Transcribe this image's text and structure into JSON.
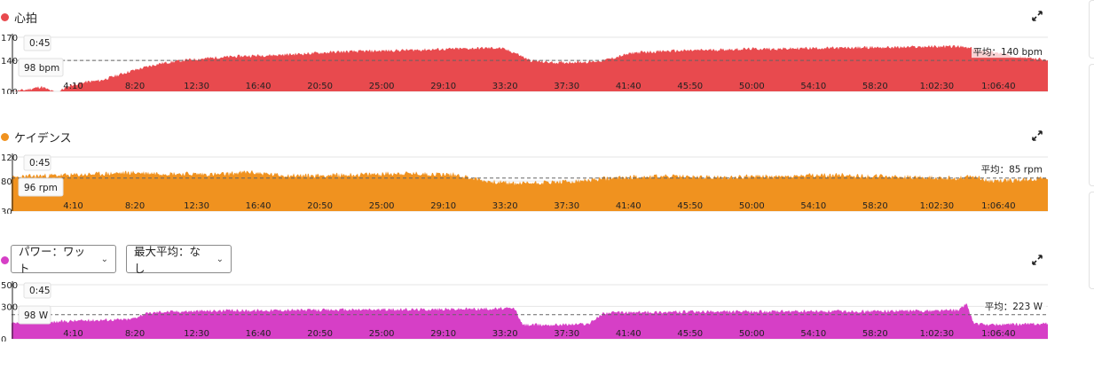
{
  "colors": {
    "hr": "#e84a4e",
    "cadence": "#f0921f",
    "power": "#d63fc6"
  },
  "x_ticks": [
    "4:10",
    "8:20",
    "12:30",
    "16:40",
    "20:50",
    "25:00",
    "29:10",
    "33:20",
    "37:30",
    "41:40",
    "45:50",
    "50:00",
    "54:10",
    "58:20",
    "1:02:30",
    "1:06:40"
  ],
  "icons": {
    "expand": "expand-icon",
    "chevron": "chevron-down-icon"
  },
  "hr": {
    "title": "心拍",
    "avg_label": "平均：140 bpm",
    "tooltip_time": "0:45",
    "tooltip_value": "98 bpm"
  },
  "cadence": {
    "title": "ケイデンス",
    "avg_label": "平均：85 rpm",
    "tooltip_time": "0:45",
    "tooltip_value": "96 rpm"
  },
  "power": {
    "metric_select": "パワー：ワット",
    "maxavg_select": "最大平均：なし",
    "avg_label": "平均：223 W",
    "tooltip_time": "0:45",
    "tooltip_value": "98 W"
  },
  "chart_data": [
    {
      "type": "area",
      "title": "心拍",
      "unit": "bpm",
      "ylim": [
        100,
        170
      ],
      "y_ticks": [
        100,
        140,
        170
      ],
      "average": 140,
      "x_minutes": [
        0,
        1,
        2,
        3,
        4,
        5,
        6,
        8,
        10,
        12,
        14,
        16,
        18,
        20,
        22,
        24,
        26,
        28,
        30,
        32,
        33,
        34,
        35,
        36,
        37,
        38,
        39,
        40,
        41,
        42,
        44,
        46,
        48,
        50,
        52,
        54,
        56,
        58,
        60,
        62,
        64,
        66,
        68,
        69,
        70
      ],
      "values": [
        100,
        102,
        106,
        98,
        108,
        112,
        114,
        126,
        136,
        141,
        144,
        146,
        147,
        149,
        151,
        152,
        153,
        154,
        155,
        156,
        156,
        150,
        140,
        138,
        137,
        138,
        138,
        140,
        145,
        150,
        152,
        153,
        154,
        155,
        155,
        156,
        156,
        157,
        157,
        158,
        158,
        152,
        145,
        143,
        140
      ]
    },
    {
      "type": "area",
      "title": "ケイデンス",
      "unit": "rpm",
      "ylim": [
        30,
        120
      ],
      "y_ticks": [
        30,
        80,
        120
      ],
      "average": 85,
      "x_minutes": [
        0,
        2,
        4,
        6,
        8,
        10,
        12,
        14,
        16,
        18,
        20,
        22,
        24,
        26,
        28,
        30,
        32,
        34,
        36,
        38,
        40,
        42,
        44,
        46,
        48,
        50,
        52,
        54,
        56,
        58,
        60,
        62,
        64,
        65,
        66,
        68,
        70
      ],
      "values": [
        86,
        89,
        90,
        92,
        94,
        93,
        92,
        91,
        95,
        90,
        89,
        90,
        91,
        93,
        92,
        91,
        80,
        76,
        78,
        79,
        84,
        87,
        88,
        87,
        86,
        88,
        87,
        89,
        90,
        88,
        87,
        86,
        85,
        89,
        80,
        82,
        85
      ]
    },
    {
      "type": "area",
      "title": "パワー：ワット",
      "unit": "W",
      "ylim": [
        0,
        500
      ],
      "y_ticks": [
        0,
        300,
        500
      ],
      "average": 223,
      "x_minutes": [
        0,
        2,
        4,
        6,
        8,
        9,
        10,
        12,
        14,
        16,
        18,
        20,
        22,
        24,
        26,
        28,
        30,
        32,
        34,
        34.5,
        36,
        38,
        39,
        40,
        42,
        44,
        46,
        48,
        50,
        52,
        54,
        56,
        58,
        60,
        62,
        64,
        64.5,
        65,
        66,
        68,
        70
      ],
      "values": [
        140,
        150,
        165,
        175,
        180,
        230,
        250,
        255,
        260,
        262,
        265,
        265,
        268,
        270,
        270,
        272,
        275,
        278,
        280,
        130,
        130,
        135,
        140,
        240,
        245,
        248,
        250,
        250,
        252,
        252,
        254,
        255,
        255,
        258,
        260,
        265,
        330,
        140,
        130,
        135,
        140
      ]
    }
  ]
}
